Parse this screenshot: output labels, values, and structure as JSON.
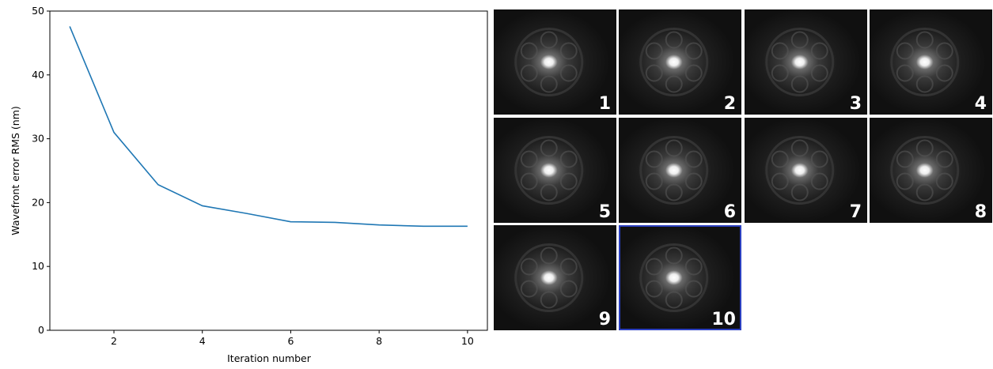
{
  "chart_data": {
    "type": "line",
    "xlabel": "Iteration number",
    "ylabel": "Wavefront error RMS (nm)",
    "x": [
      1,
      2,
      3,
      4,
      5,
      6,
      7,
      8,
      9,
      10
    ],
    "series": [
      {
        "name": "Wavefront error RMS",
        "color": "#1f77b4",
        "values": [
          47.6,
          31.0,
          22.8,
          19.5,
          18.3,
          17.0,
          16.9,
          16.5,
          16.3,
          16.3
        ]
      }
    ],
    "xlim": [
      0.55,
      10.45
    ],
    "ylim": [
      0,
      50
    ],
    "xticks": [
      2,
      4,
      6,
      8,
      10
    ],
    "yticks": [
      0,
      10,
      20,
      30,
      40,
      50
    ],
    "grid": false
  },
  "panels": {
    "labels": [
      "1",
      "2",
      "3",
      "4",
      "5",
      "6",
      "7",
      "8",
      "9",
      "10"
    ]
  }
}
